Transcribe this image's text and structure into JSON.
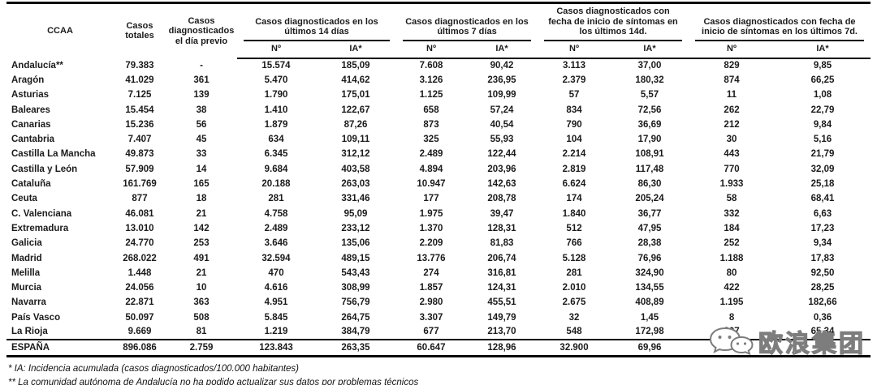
{
  "table": {
    "headers": {
      "ccaa": "CCAA",
      "totales": "Casos totales",
      "dia_previo": "Casos diagnosticados el día previo",
      "group_14d": "Casos diagnosticados en los últimos 14 días",
      "group_7d": "Casos diagnosticados en los últimos 7 días",
      "group_sintomas_14d": "Casos diagnosticados con fecha de inicio de síntomas en los últimos 14d.",
      "group_sintomas_7d": "Casos diagnosticados con fecha de inicio de síntomas en los últimos 7d.",
      "num": "Nº",
      "ia": "IA*"
    },
    "rows": [
      [
        "Andalucía**",
        "79.383",
        "-",
        "15.574",
        "185,09",
        "7.608",
        "90,42",
        "3.113",
        "37,00",
        "829",
        "9,85"
      ],
      [
        "Aragón",
        "41.029",
        "361",
        "5.470",
        "414,62",
        "3.126",
        "236,95",
        "2.379",
        "180,32",
        "874",
        "66,25"
      ],
      [
        "Asturias",
        "7.125",
        "139",
        "1.790",
        "175,01",
        "1.125",
        "109,99",
        "57",
        "5,57",
        "11",
        "1,08"
      ],
      [
        "Baleares",
        "15.454",
        "38",
        "1.410",
        "122,67",
        "658",
        "57,24",
        "834",
        "72,56",
        "262",
        "22,79"
      ],
      [
        "Canarias",
        "15.236",
        "56",
        "1.879",
        "87,26",
        "873",
        "40,54",
        "790",
        "36,69",
        "212",
        "9,84"
      ],
      [
        "Cantabria",
        "7.407",
        "45",
        "634",
        "109,11",
        "325",
        "55,93",
        "104",
        "17,90",
        "30",
        "5,16"
      ],
      [
        "Castilla La Mancha",
        "49.873",
        "33",
        "6.345",
        "312,12",
        "2.489",
        "122,44",
        "2.214",
        "108,91",
        "443",
        "21,79"
      ],
      [
        "Castilla y León",
        "57.909",
        "14",
        "9.684",
        "403,58",
        "4.894",
        "203,96",
        "2.819",
        "117,48",
        "770",
        "32,09"
      ],
      [
        "Cataluña",
        "161.769",
        "165",
        "20.188",
        "263,03",
        "10.947",
        "142,63",
        "6.624",
        "86,30",
        "1.933",
        "25,18"
      ],
      [
        "Ceuta",
        "877",
        "18",
        "281",
        "331,46",
        "177",
        "208,78",
        "174",
        "205,24",
        "58",
        "68,41"
      ],
      [
        "C. Valenciana",
        "46.081",
        "21",
        "4.758",
        "95,09",
        "1.975",
        "39,47",
        "1.840",
        "36,77",
        "332",
        "6,63"
      ],
      [
        "Extremadura",
        "13.010",
        "142",
        "2.489",
        "233,12",
        "1.370",
        "128,31",
        "512",
        "47,95",
        "184",
        "17,23"
      ],
      [
        "Galicia",
        "24.770",
        "253",
        "3.646",
        "135,06",
        "2.209",
        "81,83",
        "766",
        "28,38",
        "252",
        "9,34"
      ],
      [
        "Madrid",
        "268.022",
        "491",
        "32.594",
        "489,15",
        "13.776",
        "206,74",
        "5.128",
        "76,96",
        "1.188",
        "17,83"
      ],
      [
        "Melilla",
        "1.448",
        "21",
        "470",
        "543,43",
        "274",
        "316,81",
        "281",
        "324,90",
        "80",
        "92,50"
      ],
      [
        "Murcia",
        "24.056",
        "10",
        "4.616",
        "308,99",
        "1.857",
        "124,31",
        "2.010",
        "134,55",
        "422",
        "28,25"
      ],
      [
        "Navarra",
        "22.871",
        "363",
        "4.951",
        "756,79",
        "2.980",
        "455,51",
        "2.675",
        "408,89",
        "1.195",
        "182,66"
      ],
      [
        "País Vasco",
        "50.097",
        "508",
        "5.845",
        "264,75",
        "3.307",
        "149,79",
        "32",
        "1,45",
        "8",
        "0,36"
      ],
      [
        "La Rioja",
        "9.669",
        "81",
        "1.219",
        "384,79",
        "677",
        "213,70",
        "548",
        "172,98",
        "207",
        "65,34"
      ]
    ],
    "total_row": [
      "ESPAÑA",
      "896.086",
      "2.759",
      "123.843",
      "263,35",
      "60.647",
      "128,96",
      "32.900",
      "69,96",
      "",
      ""
    ]
  },
  "footnotes": {
    "ia": "* IA: Incidencia acumulada (casos diagnosticados/100.000 habitantes)",
    "andalucia": "** La comunidad autónoma de Andalucía no ha podido actualizar sus datos por problemas técnicos"
  },
  "watermark": {
    "text": "欧浪集团",
    "icon": "chat-bubbles-logo-icon"
  },
  "colors": {
    "text": "#1b1b1b",
    "border": "#000000",
    "background": "#ffffff",
    "watermark_outline": "#7d7d7d"
  }
}
